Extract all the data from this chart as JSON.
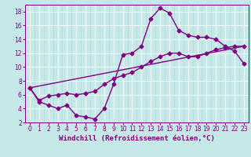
{
  "xlabel": "Windchill (Refroidissement éolien,°C)",
  "ylabel": "",
  "bg_color": "#c5e8e8",
  "line_color": "#800080",
  "grid_color": "#aed4d4",
  "white_grid_color": "#ffffff",
  "xlim": [
    -0.5,
    23.5
  ],
  "ylim": [
    2,
    19
  ],
  "xticks": [
    0,
    1,
    2,
    3,
    4,
    5,
    6,
    7,
    8,
    9,
    10,
    11,
    12,
    13,
    14,
    15,
    16,
    17,
    18,
    19,
    20,
    21,
    22,
    23
  ],
  "yticks": [
    2,
    4,
    6,
    8,
    10,
    12,
    14,
    16,
    18
  ],
  "line1_x": [
    0,
    1,
    2,
    3,
    4,
    5,
    6,
    7,
    8,
    9,
    10,
    11,
    12,
    13,
    14,
    15,
    16,
    17,
    18,
    19,
    20,
    21,
    22,
    23
  ],
  "line1_y": [
    7.0,
    5.0,
    4.5,
    4.0,
    4.5,
    3.0,
    2.8,
    2.5,
    4.0,
    7.5,
    11.8,
    12.0,
    13.0,
    17.0,
    18.5,
    17.8,
    15.3,
    14.6,
    14.3,
    14.3,
    14.0,
    13.0,
    12.3,
    10.5
  ],
  "line2_x": [
    0,
    1,
    2,
    3,
    4,
    5,
    6,
    7,
    8,
    9,
    10,
    11,
    12,
    13,
    14,
    15,
    16,
    17,
    18,
    19,
    20,
    21,
    22,
    23
  ],
  "line2_y": [
    7.0,
    5.2,
    5.8,
    6.0,
    6.2,
    6.0,
    6.2,
    6.5,
    7.5,
    8.3,
    8.8,
    9.2,
    10.0,
    10.8,
    11.5,
    12.0,
    12.0,
    11.5,
    11.5,
    12.0,
    12.5,
    12.8,
    13.0,
    13.0
  ],
  "line3_x": [
    0,
    23
  ],
  "line3_y": [
    7.0,
    13.0
  ],
  "marker_size": 2.5,
  "line_width": 1.0,
  "tick_fontsize": 5.5,
  "xlabel_fontsize": 6.5
}
